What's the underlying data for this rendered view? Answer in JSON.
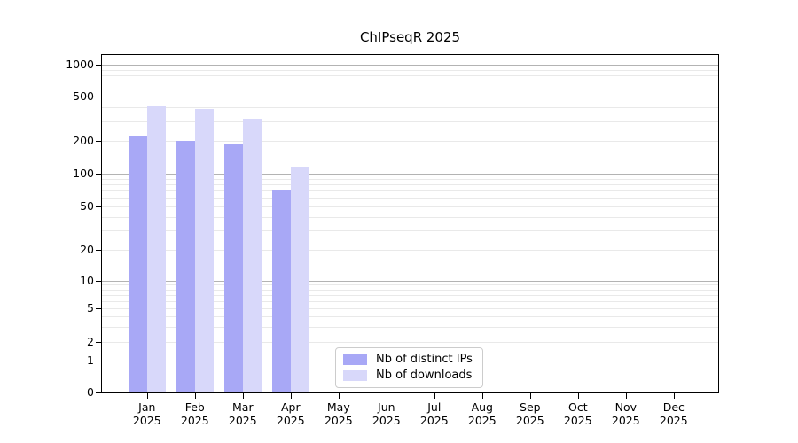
{
  "title": "ChIPseqR 2025",
  "chart_data": {
    "type": "bar",
    "title": "ChIPseqR 2025",
    "xlabel": "",
    "ylabel": "",
    "yscale": "log-like (0,1,2,5,10,20,50,100,200,500,1000)",
    "ylim": [
      0,
      1300
    ],
    "grid": true,
    "legend_position": "inside-bottom-center",
    "categories": [
      "Jan 2025",
      "Feb 2025",
      "Mar 2025",
      "Apr 2025",
      "May 2025",
      "Jun 2025",
      "Jul 2025",
      "Aug 2025",
      "Sep 2025",
      "Oct 2025",
      "Nov 2025",
      "Dec 2025"
    ],
    "y_ticks": [
      0,
      1,
      2,
      5,
      10,
      20,
      50,
      100,
      200,
      500,
      1000
    ],
    "y_tick_labels": [
      "0",
      "1",
      "2",
      "5",
      "10",
      "20",
      "50",
      "100",
      "200",
      "500",
      "1000"
    ],
    "series": [
      {
        "name": "Nb of distinct IPs",
        "color": "#a8a8f6",
        "values": [
          225,
          200,
          190,
          72,
          null,
          null,
          null,
          null,
          null,
          null,
          null,
          null
        ]
      },
      {
        "name": "Nb of downloads",
        "color": "#d8d8fa",
        "values": [
          410,
          385,
          315,
          115,
          null,
          null,
          null,
          null,
          null,
          null,
          null,
          null
        ]
      }
    ]
  },
  "colors": {
    "major_grid": "#b3b3b3",
    "minor_grid": "#e9e9e9",
    "spine": "#000000",
    "legend_border": "#cccccc",
    "background": "#ffffff"
  },
  "legend": {
    "items": [
      {
        "label": "Nb of distinct IPs",
        "color": "#a8a8f6"
      },
      {
        "label": "Nb of downloads",
        "color": "#d8d8fa"
      }
    ]
  }
}
